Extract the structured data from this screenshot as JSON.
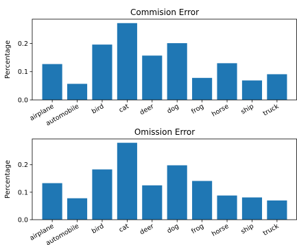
{
  "chart_data": [
    {
      "type": "bar",
      "title": "Commision Error",
      "xlabel": "",
      "ylabel": "Percentage",
      "categories": [
        "airplane",
        "automobile",
        "bird",
        "cat",
        "deer",
        "dog",
        "frog",
        "horse",
        "ship",
        "truck"
      ],
      "values": [
        0.127,
        0.057,
        0.196,
        0.272,
        0.157,
        0.201,
        0.078,
        0.13,
        0.069,
        0.091
      ],
      "ylim": [
        0,
        0.286
      ],
      "yticks": [
        0.0,
        0.1,
        0.2
      ],
      "ytick_labels": [
        "0.0",
        "0.1",
        "0.2"
      ],
      "bar_color": "#1f77b4",
      "grid": false,
      "legend": "none"
    },
    {
      "type": "bar",
      "title": "Omission Error",
      "xlabel": "",
      "ylabel": "Percentage",
      "categories": [
        "airplane",
        "automobile",
        "bird",
        "cat",
        "deer",
        "dog",
        "frog",
        "horse",
        "ship",
        "truck"
      ],
      "values": [
        0.133,
        0.078,
        0.183,
        0.28,
        0.125,
        0.198,
        0.141,
        0.088,
        0.081,
        0.07
      ],
      "ylim": [
        0,
        0.294
      ],
      "yticks": [
        0.0,
        0.1,
        0.2
      ],
      "ytick_labels": [
        "0.0",
        "0.1",
        "0.2"
      ],
      "bar_color": "#1f77b4",
      "grid": false,
      "legend": "none"
    }
  ]
}
